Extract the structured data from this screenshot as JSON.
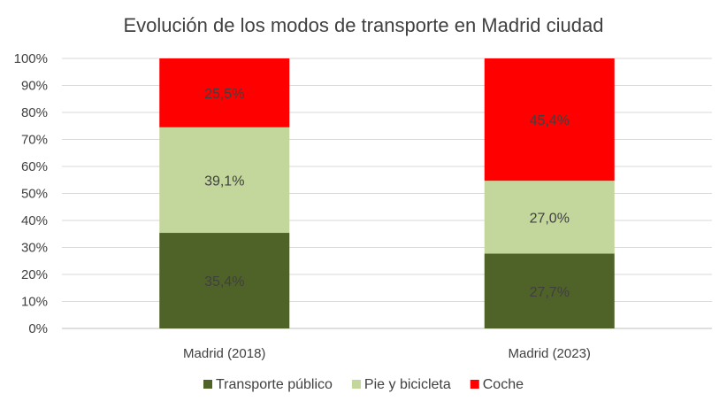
{
  "chart_data": {
    "type": "bar",
    "stacked": true,
    "title": "Evolución de los modos de transporte en Madrid ciudad",
    "categories": [
      "Madrid (2018)",
      "Madrid (2023)"
    ],
    "series": [
      {
        "name": "Transporte público",
        "values": [
          35.4,
          27.7
        ],
        "labels": [
          "35,4%",
          "27,7%"
        ],
        "color": "#4f6228"
      },
      {
        "name": "Pie y bicicleta",
        "values": [
          39.1,
          27.0
        ],
        "labels": [
          "39,1%",
          "27,0%"
        ],
        "color": "#c3d69b"
      },
      {
        "name": "Coche",
        "values": [
          25.5,
          45.4
        ],
        "labels": [
          "25,5%",
          "45,4%"
        ],
        "color": "#ff0000"
      }
    ],
    "ylim": [
      0,
      100
    ],
    "yticks": [
      "0%",
      "10%",
      "20%",
      "30%",
      "40%",
      "50%",
      "60%",
      "70%",
      "80%",
      "90%",
      "100%"
    ],
    "grid": true,
    "legend_position": "bottom"
  }
}
